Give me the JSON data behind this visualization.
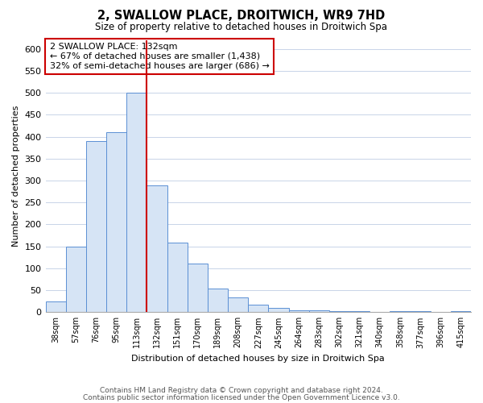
{
  "title": "2, SWALLOW PLACE, DROITWICH, WR9 7HD",
  "subtitle": "Size of property relative to detached houses in Droitwich Spa",
  "xlabel": "Distribution of detached houses by size in Droitwich Spa",
  "ylabel": "Number of detached properties",
  "bar_labels": [
    "38sqm",
    "57sqm",
    "76sqm",
    "95sqm",
    "113sqm",
    "132sqm",
    "151sqm",
    "170sqm",
    "189sqm",
    "208sqm",
    "227sqm",
    "245sqm",
    "264sqm",
    "283sqm",
    "302sqm",
    "321sqm",
    "340sqm",
    "358sqm",
    "377sqm",
    "396sqm",
    "415sqm"
  ],
  "bar_values": [
    25,
    150,
    390,
    410,
    500,
    290,
    158,
    110,
    54,
    33,
    18,
    10,
    5,
    4,
    3,
    3,
    0,
    3,
    3,
    0,
    3
  ],
  "bar_color": "#d6e4f5",
  "bar_edge_color": "#5b8fd4",
  "vline_x_idx": 5,
  "vline_color": "#cc0000",
  "annotation_line1": "2 SWALLOW PLACE: 132sqm",
  "annotation_line2": "← 67% of detached houses are smaller (1,438)",
  "annotation_line3": "32% of semi-detached houses are larger (686) →",
  "annotation_box_color": "#cc0000",
  "ylim": [
    0,
    620
  ],
  "yticks": [
    0,
    50,
    100,
    150,
    200,
    250,
    300,
    350,
    400,
    450,
    500,
    550,
    600
  ],
  "footer_line1": "Contains HM Land Registry data © Crown copyright and database right 2024.",
  "footer_line2": "Contains public sector information licensed under the Open Government Licence v3.0.",
  "background_color": "#ffffff",
  "grid_color": "#c8d4e8"
}
